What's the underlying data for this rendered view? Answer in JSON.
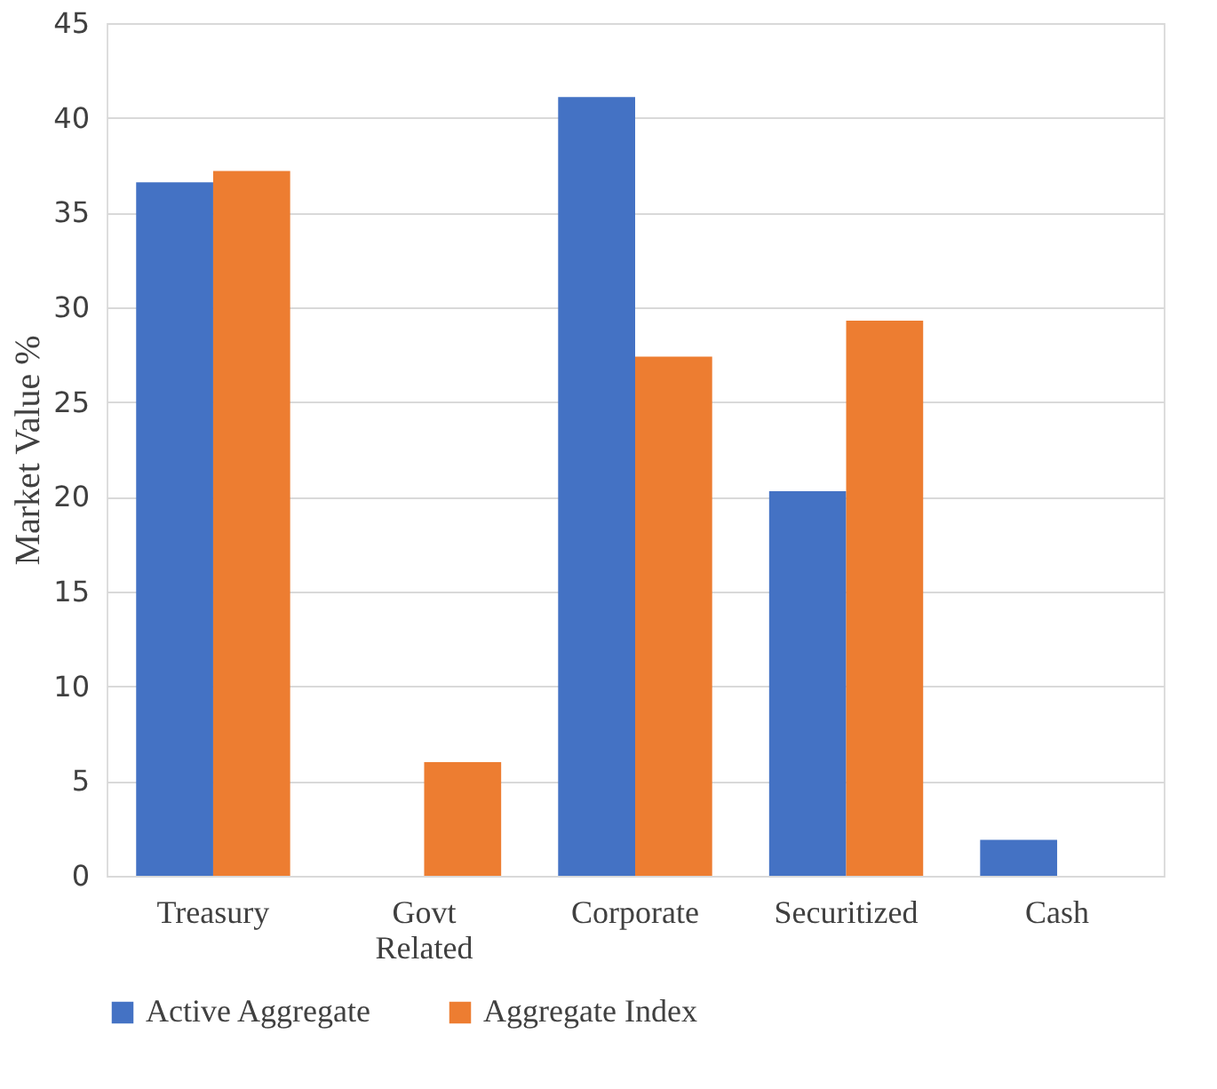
{
  "chart_data": {
    "type": "bar",
    "ylabel": "Market Value %",
    "categories": [
      "Treasury",
      "Govt Related",
      "Corporate",
      "Securitized",
      "Cash"
    ],
    "series": [
      {
        "name": "Active Aggregate",
        "color": "#4472c4",
        "values": [
          36.6,
          null,
          41.1,
          20.3,
          1.9
        ]
      },
      {
        "name": "Aggregate Index",
        "color": "#ed7d31",
        "values": [
          37.2,
          6.0,
          27.4,
          29.3,
          null
        ]
      }
    ],
    "ylim": [
      0,
      45
    ],
    "yticks": [
      0,
      5,
      10,
      15,
      20,
      25,
      30,
      35,
      40,
      45
    ],
    "grid": "y",
    "legend": "bottom"
  }
}
